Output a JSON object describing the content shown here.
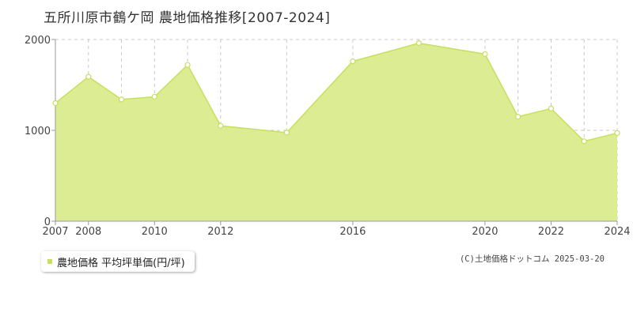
{
  "title": "五所川原市鶴ケ岡 農地価格推移[2007-2024]",
  "legend": {
    "label": "農地価格 平均坪単価(円/坪)"
  },
  "copyright": "(C)土地価格ドットコム 2025-03-20",
  "colors": {
    "fill": "#dcec92",
    "line": "#c6df5e",
    "grid": "#c8c8c8",
    "axis": "#9a9a9a",
    "marker_fill": "#ffffff"
  },
  "chart_data": {
    "type": "area",
    "x": [
      2007,
      2008,
      2009,
      2010,
      2011,
      2012,
      2014,
      2016,
      2018,
      2020,
      2021,
      2022,
      2023,
      2024
    ],
    "series": [
      {
        "name": "農地価格 平均坪単価(円/坪)",
        "values": [
          1300,
          1590,
          1340,
          1370,
          1720,
          1050,
          975,
          1760,
          1960,
          1840,
          1150,
          1240,
          880,
          970
        ]
      }
    ],
    "xlim": [
      2007,
      2024
    ],
    "ylim": [
      0,
      2000
    ],
    "yticks": [
      0,
      1000,
      2000
    ],
    "xticks": [
      2007,
      2008,
      2010,
      2012,
      2016,
      2020,
      2022,
      2024
    ],
    "grid": true
  }
}
